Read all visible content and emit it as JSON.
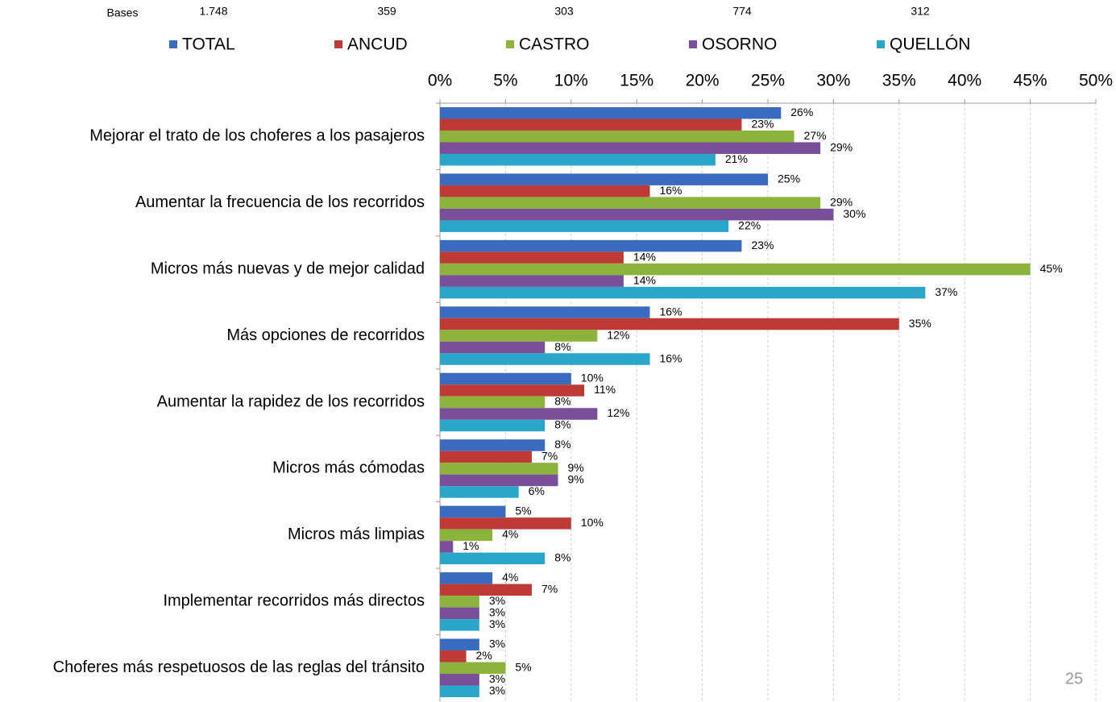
{
  "chart_data": {
    "type": "hbar",
    "bases": {
      "label": "Bases",
      "values": [
        "1.748",
        "359",
        "303",
        "774",
        "312"
      ]
    },
    "page_number": "25",
    "categories": [
      "Mejorar el trato de los choferes a los pasajeros",
      "Aumentar la frecuencia de los recorridos",
      "Micros más nuevas y de mejor calidad",
      "Más opciones de recorridos",
      "Aumentar la rapidez de los recorridos",
      "Micros más cómodas",
      "Micros más limpias",
      "Implementar recorridos más directos",
      "Choferes más respetuosos de las reglas del tránsito"
    ],
    "series": [
      {
        "name": "TOTAL",
        "color": "#3a6bbf",
        "values": [
          26,
          25,
          23,
          16,
          10,
          8,
          5,
          4,
          3
        ],
        "value_labels": [
          "26%",
          "25%",
          "23%",
          "16%",
          "10%",
          "8%",
          "5%",
          "4%",
          "3%"
        ]
      },
      {
        "name": "ANCUD",
        "color": "#be3a35",
        "values": [
          23,
          16,
          14,
          35,
          11,
          7,
          10,
          7,
          2
        ],
        "value_labels": [
          "23%",
          "16%",
          "14%",
          "35%",
          "11%",
          "7%",
          "10%",
          "7%",
          "2%"
        ]
      },
      {
        "name": "CASTRO",
        "color": "#8cb43c",
        "values": [
          27,
          29,
          45,
          12,
          8,
          9,
          4,
          3,
          5
        ],
        "value_labels": [
          "27%",
          "29%",
          "45%",
          "12%",
          "8%",
          "9%",
          "4%",
          "3%",
          "5%"
        ]
      },
      {
        "name": "OSORNO",
        "color": "#7a4f9a",
        "values": [
          29,
          30,
          14,
          8,
          12,
          9,
          1,
          3,
          3
        ],
        "value_labels": [
          "29%",
          "30%",
          "14%",
          "8%",
          "12%",
          "9%",
          "1%",
          "3%",
          "3%"
        ]
      },
      {
        "name": "QUELLÓN",
        "color": "#2aa6c8",
        "values": [
          21,
          22,
          37,
          16,
          8,
          6,
          8,
          3,
          3
        ],
        "value_labels": [
          "21%",
          "22%",
          "37%",
          "16%",
          "8%",
          "6%",
          "8%",
          "3%",
          "3%"
        ]
      }
    ],
    "xlim": [
      0,
      50
    ],
    "xticks": [
      {
        "value": 0,
        "label": "0%"
      },
      {
        "value": 5,
        "label": "5%"
      },
      {
        "value": 10,
        "label": "10%"
      },
      {
        "value": 15,
        "label": "15%"
      },
      {
        "value": 20,
        "label": "20%"
      },
      {
        "value": 25,
        "label": "25%"
      },
      {
        "value": 30,
        "label": "30%"
      },
      {
        "value": 35,
        "label": "35%"
      },
      {
        "value": 40,
        "label": "40%"
      },
      {
        "value": 45,
        "label": "45%"
      },
      {
        "value": 50,
        "label": "50%"
      }
    ],
    "grid": true
  }
}
